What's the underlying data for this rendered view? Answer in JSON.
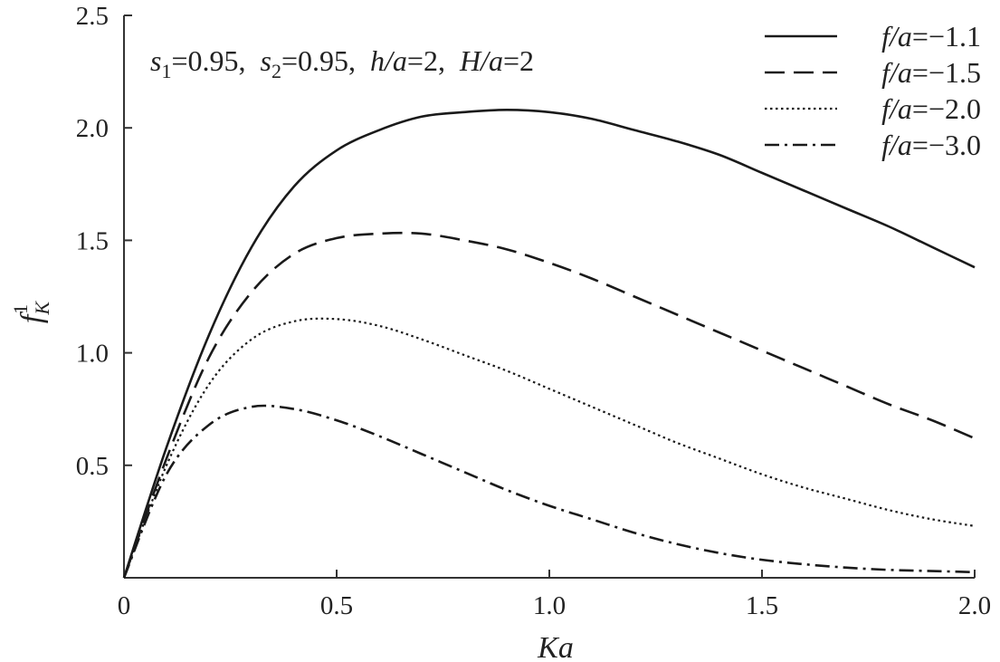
{
  "chart_data": {
    "type": "line",
    "xlabel": "Ka",
    "ylabel": {
      "base": "f",
      "sub": "K",
      "sup": "1"
    },
    "xlim": [
      0,
      2.0
    ],
    "ylim": [
      0,
      2.5
    ],
    "x_ticks": [
      "0",
      "0.5",
      "1.0",
      "1.5",
      "2.0"
    ],
    "y_ticks": [
      "0.5",
      "1.0",
      "1.5",
      "2.0",
      "2.5"
    ],
    "grid": false,
    "legend_position": "top-right",
    "annotation": {
      "s1": {
        "base": "s",
        "sub": "1",
        "rest": "=0.95,"
      },
      "s2": {
        "base": "s",
        "sub": "2",
        "rest": "=0.95,"
      },
      "h": {
        "var": "h/a",
        "rest": "=2,"
      },
      "H": {
        "var": "H/a",
        "rest": "=2"
      }
    },
    "series": [
      {
        "name": "f/a=−1.1",
        "label_var": "f/a",
        "label_rest": "=−1.1",
        "style": "solid",
        "x": [
          0,
          0.1,
          0.2,
          0.3,
          0.4,
          0.5,
          0.6,
          0.7,
          0.8,
          0.9,
          1.0,
          1.1,
          1.2,
          1.3,
          1.4,
          1.5,
          1.6,
          1.7,
          1.8,
          1.9,
          2.0
        ],
        "y": [
          0,
          0.58,
          1.08,
          1.47,
          1.74,
          1.9,
          1.99,
          2.05,
          2.07,
          2.08,
          2.07,
          2.04,
          1.99,
          1.94,
          1.88,
          1.8,
          1.72,
          1.64,
          1.56,
          1.47,
          1.38
        ]
      },
      {
        "name": "f/a=−1.5",
        "label_var": "f/a",
        "label_rest": "=−1.5",
        "style": "dashed",
        "x": [
          0,
          0.1,
          0.2,
          0.3,
          0.4,
          0.5,
          0.6,
          0.7,
          0.8,
          0.9,
          1.0,
          1.1,
          1.2,
          1.3,
          1.4,
          1.5,
          1.6,
          1.7,
          1.8,
          1.9,
          2.0
        ],
        "y": [
          0,
          0.53,
          0.98,
          1.27,
          1.44,
          1.51,
          1.53,
          1.53,
          1.5,
          1.46,
          1.4,
          1.33,
          1.25,
          1.17,
          1.09,
          1.01,
          0.93,
          0.85,
          0.77,
          0.7,
          0.62
        ]
      },
      {
        "name": "f/a=−2.0",
        "label_var": "f/a",
        "label_rest": "=−2.0",
        "style": "dotted",
        "x": [
          0,
          0.1,
          0.2,
          0.3,
          0.4,
          0.5,
          0.6,
          0.7,
          0.8,
          0.9,
          1.0,
          1.1,
          1.2,
          1.3,
          1.4,
          1.5,
          1.6,
          1.7,
          1.8,
          1.9,
          2.0
        ],
        "y": [
          0,
          0.5,
          0.86,
          1.06,
          1.14,
          1.15,
          1.12,
          1.06,
          0.99,
          0.92,
          0.84,
          0.76,
          0.68,
          0.6,
          0.53,
          0.46,
          0.4,
          0.35,
          0.3,
          0.26,
          0.23
        ]
      },
      {
        "name": "f/a=−3.0",
        "label_var": "f/a",
        "label_rest": "=−3.0",
        "style": "dashdot",
        "x": [
          0,
          0.1,
          0.2,
          0.3,
          0.4,
          0.5,
          0.6,
          0.7,
          0.8,
          0.9,
          1.0,
          1.1,
          1.2,
          1.3,
          1.4,
          1.5,
          1.6,
          1.7,
          1.8,
          1.9,
          2.0
        ],
        "y": [
          0,
          0.46,
          0.68,
          0.76,
          0.75,
          0.7,
          0.63,
          0.55,
          0.47,
          0.39,
          0.32,
          0.26,
          0.2,
          0.15,
          0.11,
          0.08,
          0.06,
          0.045,
          0.035,
          0.03,
          0.025
        ]
      }
    ]
  }
}
